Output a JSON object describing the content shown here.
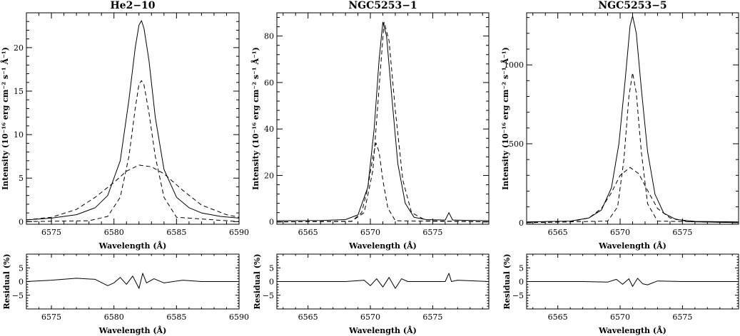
{
  "chart_data": [
    {
      "type": "line",
      "title": "He2−10",
      "xlabel": "Wavelength (Å)",
      "ylabel": "Intensity (10⁻¹⁶ erg cm⁻² s⁻¹ Å⁻¹)",
      "xlim": [
        6573.0,
        6590.0
      ],
      "ylim": [
        -0.3,
        24.0
      ],
      "xticks": [
        "6575",
        "6580",
        "6585",
        "6590"
      ],
      "yticks": [
        "0",
        "5",
        "10",
        "15",
        "20"
      ],
      "series": [
        {
          "style": "solid",
          "x": [
            6573.0,
            6575.0,
            6577.0,
            6578.5,
            6579.5,
            6580.5,
            6581.2,
            6581.7,
            6582.0,
            6582.2,
            6582.4,
            6582.8,
            6583.3,
            6584.0,
            6585.0,
            6586.0,
            6587.0,
            6588.5,
            6590.0
          ],
          "y": [
            0.2,
            0.4,
            0.8,
            1.6,
            3.0,
            7.0,
            14.0,
            20.0,
            22.6,
            23.1,
            22.2,
            18.5,
            12.0,
            6.0,
            2.8,
            1.6,
            1.0,
            0.6,
            0.4
          ]
        },
        {
          "style": "dashed",
          "x": [
            6573.0,
            6578.0,
            6579.5,
            6580.5,
            6581.2,
            6581.7,
            6582.0,
            6582.2,
            6582.4,
            6582.8,
            6583.3,
            6584.0,
            6585.0,
            6590.0
          ],
          "y": [
            0.0,
            0.1,
            0.6,
            2.8,
            7.5,
            13.0,
            15.8,
            16.2,
            15.7,
            12.5,
            7.5,
            2.8,
            0.5,
            0.0
          ]
        },
        {
          "style": "dashed",
          "x": [
            6573.0,
            6575.0,
            6577.0,
            6578.5,
            6580.0,
            6581.0,
            6582.0,
            6583.0,
            6584.0,
            6585.5,
            6587.0,
            6589.0,
            6590.0
          ],
          "y": [
            0.2,
            0.5,
            1.4,
            2.8,
            4.5,
            5.8,
            6.5,
            6.3,
            5.5,
            3.6,
            1.9,
            0.8,
            0.5
          ]
        }
      ]
    },
    {
      "type": "line",
      "title": "NGC5253−1",
      "xlabel": "Wavelength (Å)",
      "ylabel": "Intensity (10⁻¹⁶ erg cm⁻² s⁻¹ Å⁻¹)",
      "xlim": [
        6562.5,
        6579.5
      ],
      "ylim": [
        -1.0,
        90.0
      ],
      "xticks": [
        "6565",
        "6570",
        "6575"
      ],
      "yticks": [
        "0",
        "20",
        "40",
        "60",
        "80"
      ],
      "series": [
        {
          "style": "solid",
          "x": [
            6562.5,
            6566.0,
            6568.0,
            6569.0,
            6569.8,
            6570.3,
            6570.7,
            6571.0,
            6571.3,
            6571.7,
            6572.2,
            6572.8,
            6573.5,
            6574.5,
            6576.0,
            6576.3,
            6576.6,
            6579.5
          ],
          "y": [
            0.5,
            0.6,
            1.0,
            3.0,
            15.0,
            40.0,
            70.0,
            86.0,
            80.0,
            55.0,
            25.0,
            8.0,
            2.0,
            1.0,
            0.8,
            4.0,
            0.8,
            0.5
          ]
        },
        {
          "style": "dashed",
          "x": [
            6562.5,
            6568.5,
            6569.3,
            6569.8,
            6570.2,
            6570.45,
            6570.7,
            6571.0,
            6571.4,
            6572.0,
            6579.5
          ],
          "y": [
            0.0,
            0.2,
            4.0,
            15.0,
            28.0,
            34.0,
            30.0,
            18.0,
            6.0,
            0.5,
            0.0
          ]
        },
        {
          "style": "dashed",
          "x": [
            6562.5,
            6568.5,
            6569.5,
            6570.2,
            6570.7,
            6571.1,
            6571.5,
            6572.0,
            6572.6,
            6573.3,
            6574.5,
            6579.5
          ],
          "y": [
            0.0,
            0.3,
            4.0,
            22.0,
            58.0,
            86.0,
            78.0,
            48.0,
            18.0,
            4.0,
            0.5,
            0.0
          ]
        }
      ]
    },
    {
      "type": "line",
      "title": "NGC5253−5",
      "xlabel": "Wavelength (Å)",
      "ylabel": "Intensity (10⁻¹⁶ erg cm⁻² s⁻¹ Å⁻¹)",
      "xlim": [
        6562.5,
        6579.5
      ],
      "ylim": [
        -10.0,
        1330.0
      ],
      "xticks": [
        "6565",
        "6570",
        "6575"
      ],
      "yticks": [
        "0",
        "500",
        "1000"
      ],
      "series": [
        {
          "style": "solid",
          "x": [
            6562.5,
            6566.0,
            6567.5,
            6568.5,
            6569.3,
            6569.9,
            6570.4,
            6570.8,
            6571.0,
            6571.3,
            6571.7,
            6572.2,
            6572.8,
            6573.5,
            6574.5,
            6576.0,
            6579.5
          ],
          "y": [
            5,
            10,
            30,
            80,
            220,
            500,
            900,
            1250,
            1310,
            1200,
            850,
            450,
            180,
            60,
            20,
            8,
            5
          ]
        },
        {
          "style": "dashed",
          "x": [
            6562.5,
            6569.0,
            6569.8,
            6570.3,
            6570.7,
            6571.0,
            6571.3,
            6571.7,
            6572.2,
            6573.0,
            6579.5
          ],
          "y": [
            0,
            10,
            100,
            400,
            800,
            950,
            820,
            450,
            120,
            10,
            0
          ]
        },
        {
          "style": "dashed",
          "x": [
            6562.5,
            6566.0,
            6567.5,
            6568.5,
            6569.3,
            6570.0,
            6570.8,
            6571.5,
            6572.3,
            6573.0,
            6574.0,
            6575.5,
            6579.5
          ],
          "y": [
            0,
            5,
            30,
            90,
            190,
            300,
            350,
            310,
            190,
            90,
            30,
            6,
            0
          ]
        }
      ]
    },
    {
      "type": "line",
      "xlabel": "Wavelength (Å)",
      "ylabel": "Residual (%)",
      "xlim": [
        6573.0,
        6590.0
      ],
      "ylim": [
        -10.0,
        10.0
      ],
      "xticks": [
        "6575",
        "6580",
        "6585",
        "6590"
      ],
      "yticks": [
        "5",
        "0",
        "−5"
      ],
      "series": [
        {
          "style": "solid",
          "x": [
            6573.0,
            6575.0,
            6577.0,
            6578.5,
            6579.5,
            6580.0,
            6580.5,
            6581.0,
            6581.5,
            6582.0,
            6582.3,
            6582.6,
            6583.2,
            6584.0,
            6585.5,
            6587.0,
            6590.0
          ],
          "y": [
            0.0,
            0.5,
            1.2,
            0.8,
            -1.5,
            -0.5,
            1.5,
            -1.0,
            2.0,
            -2.5,
            3.0,
            -0.5,
            1.0,
            -0.5,
            0.5,
            0.0,
            0.0
          ]
        }
      ]
    },
    {
      "type": "line",
      "xlabel": "Wavelength (Å)",
      "ylabel": "Residual (%)",
      "xlim": [
        6562.5,
        6579.5
      ],
      "ylim": [
        -10.0,
        10.0
      ],
      "xticks": [
        "6565",
        "6570",
        "6575"
      ],
      "yticks": [
        "5",
        "0",
        "−5"
      ],
      "series": [
        {
          "style": "solid",
          "x": [
            6562.5,
            6565.0,
            6568.0,
            6569.5,
            6570.0,
            6570.5,
            6571.0,
            6571.5,
            6572.0,
            6572.5,
            6573.0,
            6574.0,
            6576.0,
            6576.3,
            6576.5,
            6577.0,
            6579.5
          ],
          "y": [
            0.0,
            0.0,
            0.0,
            0.5,
            -1.5,
            1.0,
            -2.0,
            1.5,
            -2.5,
            1.0,
            0.0,
            0.0,
            0.0,
            3.0,
            0.0,
            0.5,
            0.0
          ]
        }
      ]
    },
    {
      "type": "line",
      "xlabel": "Wavelength (Å)",
      "ylabel": "Residual (%)",
      "xlim": [
        6562.5,
        6579.5
      ],
      "ylim": [
        -10.0,
        10.0
      ],
      "xticks": [
        "6565",
        "6570",
        "6575"
      ],
      "yticks": [
        "5",
        "0",
        "−5"
      ],
      "series": [
        {
          "style": "solid",
          "x": [
            6562.5,
            6567.0,
            6569.0,
            6569.7,
            6570.2,
            6570.7,
            6571.0,
            6571.4,
            6571.8,
            6572.2,
            6573.0,
            6575.0,
            6579.5
          ],
          "y": [
            0.0,
            0.0,
            -0.2,
            0.8,
            -1.0,
            1.0,
            -1.8,
            1.2,
            -0.8,
            -1.2,
            0.2,
            0.0,
            0.0
          ]
        }
      ]
    }
  ]
}
